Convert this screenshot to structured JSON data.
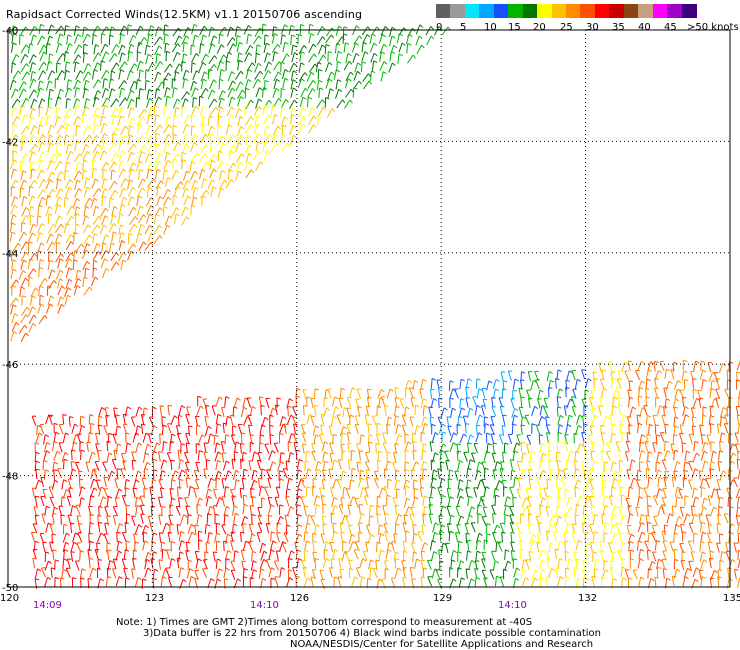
{
  "title": "Rapidsact Corrected Winds(12.5KM) v1.1 20150706 ascending",
  "legend": {
    "colors": [
      "#606060",
      "#9a9a9a",
      "#00e6ff",
      "#00a8ff",
      "#1450ff",
      "#00b400",
      "#007800",
      "#ffff00",
      "#ffc000",
      "#ff8c00",
      "#ff5000",
      "#ff0000",
      "#c80000",
      "#8b4513",
      "#c8a080",
      "#ff00ff",
      "#a000c8",
      "#3c0080"
    ],
    "labels": [
      "0",
      "5",
      "10",
      "15",
      "20",
      "25",
      "30",
      "35",
      "40",
      "45",
      ">50 knots"
    ]
  },
  "axes": {
    "lat_labels": [
      "-40",
      "-42",
      "-44",
      "-46",
      "-48",
      "-50"
    ],
    "lon_labels": [
      "120",
      "123",
      "126",
      "129",
      "132",
      "135"
    ],
    "time_labels": [
      "14:09",
      "14:10",
      "14:10"
    ],
    "time_color": "#8000c0"
  },
  "notes": {
    "line1": "Note: 1) Times are GMT 2)Times along bottom correspond to measurement at -40S",
    "line2": "3)Data buffer is 22 hrs from 20150706 4) Black wind barbs indicate possible contamination",
    "line3": "NOAA/NESDIS/Center for Satellite Applications and Research"
  }
}
